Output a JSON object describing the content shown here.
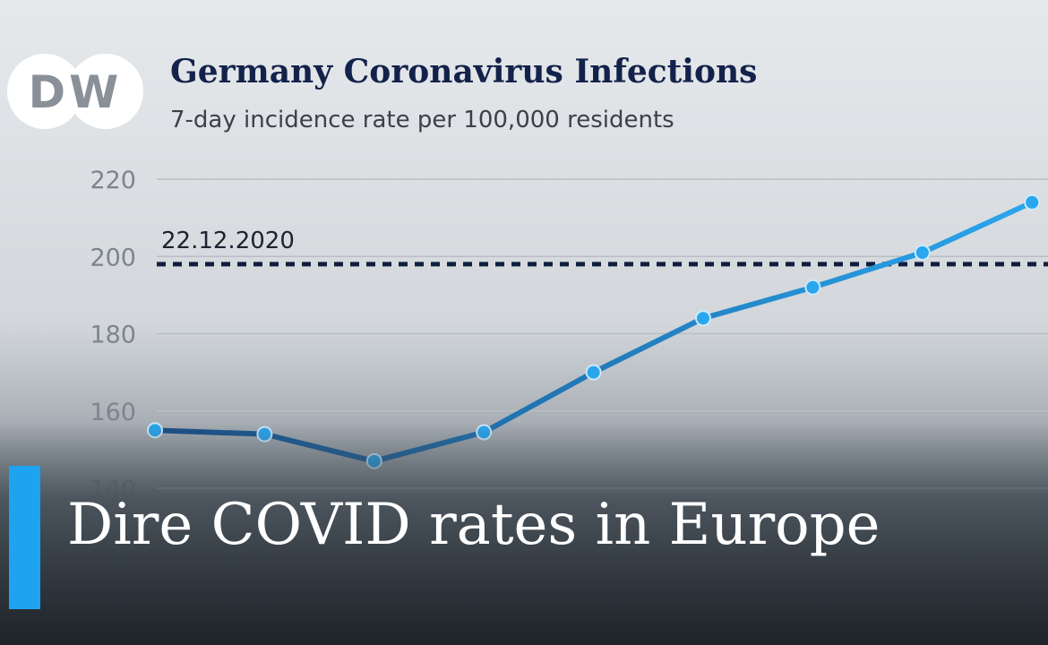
{
  "logo": "DW",
  "headline": "Dire COVID rates in Europe",
  "chart_data": {
    "type": "line",
    "title": "Germany Coronavirus Infections",
    "subtitle": "7-day incidence rate per 100,000 residents",
    "categories": [
      null,
      null,
      null,
      null,
      null,
      null,
      null,
      null,
      null
    ],
    "series": [
      {
        "name": null,
        "color": "#2aa6ee",
        "values": [
          155,
          154,
          147,
          154.5,
          170,
          184,
          192,
          201,
          214
        ]
      }
    ],
    "ylim": [
      140,
      220
    ],
    "yticks": [
      140,
      160,
      180,
      200,
      220
    ],
    "grid": true,
    "reference_line": {
      "value": 198,
      "label": "22.12.2020",
      "color": "#0f1e3c"
    }
  }
}
